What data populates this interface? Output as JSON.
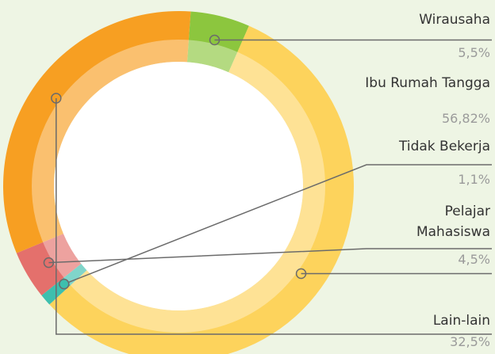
{
  "chart_data": {
    "type": "pie",
    "donut": true,
    "categories": [
      "Wirausaha",
      "Ibu Rumah Tangga",
      "Tidak Bekerja",
      "Pelajar Mahasiswa",
      "Lain-lain"
    ],
    "values": [
      5.5,
      56.82,
      1.1,
      4.5,
      32.5
    ],
    "value_labels": [
      "5,5%",
      "56,82%",
      "1,1%",
      "4,5%",
      "32,5%"
    ],
    "colors": [
      "#8cc63e",
      "#fdd35c",
      "#3dbfae",
      "#e4706c",
      "#f79f22"
    ]
  }
}
